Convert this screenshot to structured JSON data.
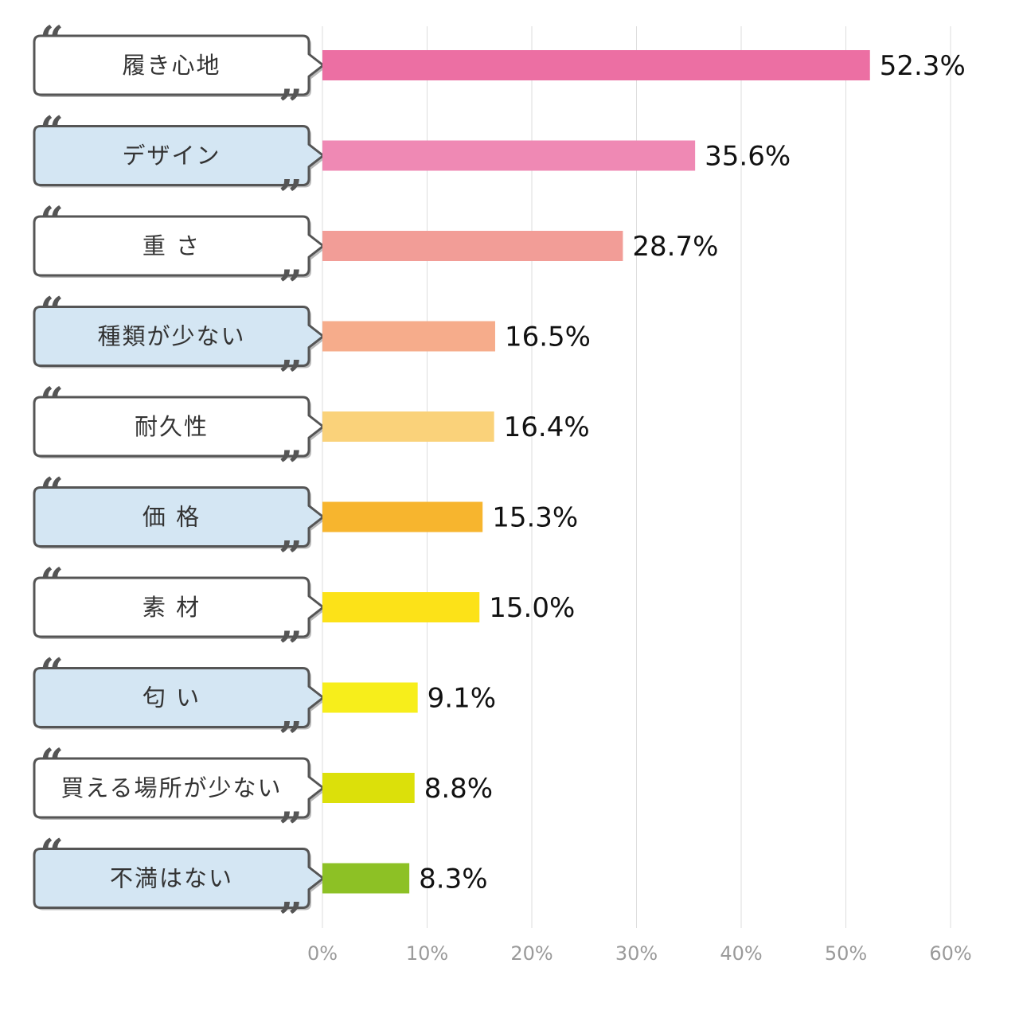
{
  "chart_data": {
    "type": "bar",
    "orientation": "horizontal",
    "categories": [
      "履き心地",
      "デザイン",
      "重 さ",
      "種類が少ない",
      "耐久性",
      "価 格",
      "素 材",
      "匂 い",
      "買える場所が少ない",
      "不満はない"
    ],
    "values": [
      52.3,
      35.6,
      28.7,
      16.5,
      16.4,
      15.3,
      15.0,
      9.1,
      8.8,
      8.3
    ],
    "value_labels": [
      "52.3%",
      "35.6%",
      "28.7%",
      "16.5%",
      "16.4%",
      "15.3%",
      "15.0%",
      "9.1%",
      "8.8%",
      "8.3%"
    ],
    "bar_colors": [
      "#ec6fa3",
      "#ef89b4",
      "#f29d97",
      "#f6ac8b",
      "#fad27a",
      "#f7b52e",
      "#fce218",
      "#f7ee1b",
      "#dce00a",
      "#8dc125"
    ],
    "label_box_colors": [
      "#ffffff",
      "#d4e6f3",
      "#ffffff",
      "#d4e6f3",
      "#ffffff",
      "#d4e6f3",
      "#ffffff",
      "#d4e6f3",
      "#ffffff",
      "#d4e6f3"
    ],
    "xlim": [
      0,
      60
    ],
    "xticks": [
      0,
      10,
      20,
      30,
      40,
      50,
      60
    ],
    "xtick_labels": [
      "0%",
      "10%",
      "20%",
      "30%",
      "40%",
      "50%",
      "60%"
    ],
    "grid": true,
    "title": "",
    "xlabel": "",
    "ylabel": "",
    "legend": "none"
  }
}
